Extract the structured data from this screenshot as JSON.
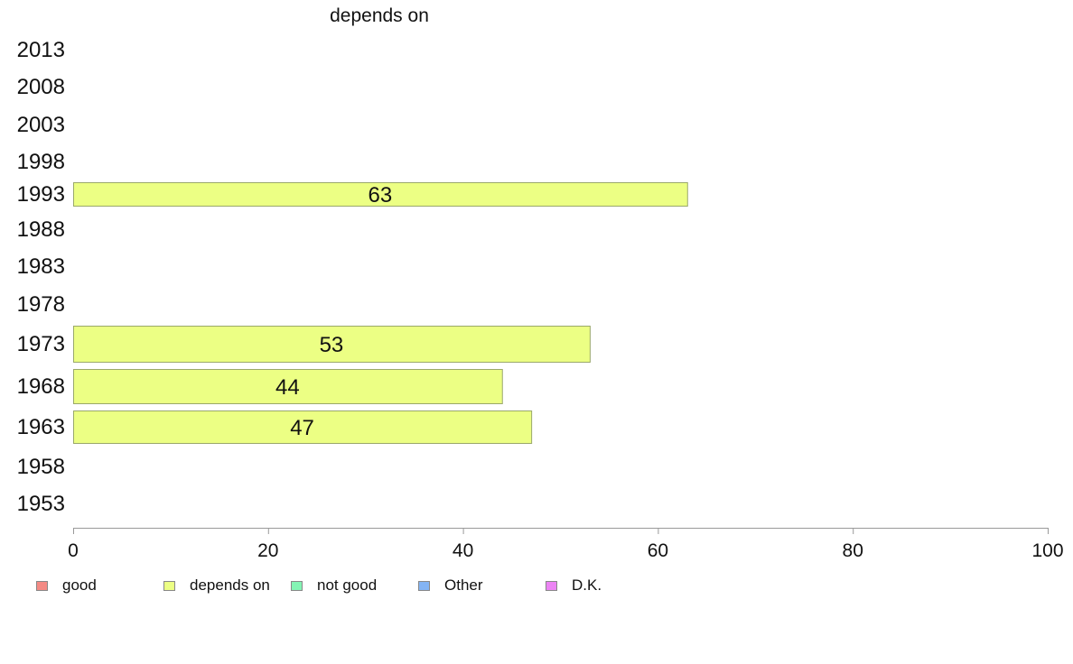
{
  "chart_data": {
    "type": "bar",
    "orientation": "horizontal",
    "title": "depends on",
    "categories": [
      "2013",
      "2008",
      "2003",
      "1998",
      "1993",
      "1988",
      "1983",
      "1978",
      "1973",
      "1968",
      "1963",
      "1958",
      "1953"
    ],
    "series": [
      {
        "name": "depends on",
        "values": [
          null,
          null,
          null,
          null,
          63,
          null,
          null,
          null,
          53,
          44,
          47,
          null,
          null
        ]
      }
    ],
    "data_labels": [
      "",
      "",
      "",
      "",
      "63",
      "",
      "",
      "",
      "53",
      "44",
      "47",
      "",
      ""
    ],
    "xlim": [
      0,
      100
    ],
    "xticks": [
      "0",
      "20",
      "40",
      "60",
      "80",
      "100"
    ],
    "grid": false,
    "legend_position": "bottom",
    "legend": [
      {
        "label": "good",
        "color": "#f48a84"
      },
      {
        "label": "depends on",
        "color": "#ecff84"
      },
      {
        "label": "not good",
        "color": "#84f4b4"
      },
      {
        "label": "Other",
        "color": "#84b4f4"
      },
      {
        "label": "D.K.",
        "color": "#ec84f4"
      }
    ],
    "bar_color": "#ecff84",
    "bar_border": "#9aa86a"
  }
}
